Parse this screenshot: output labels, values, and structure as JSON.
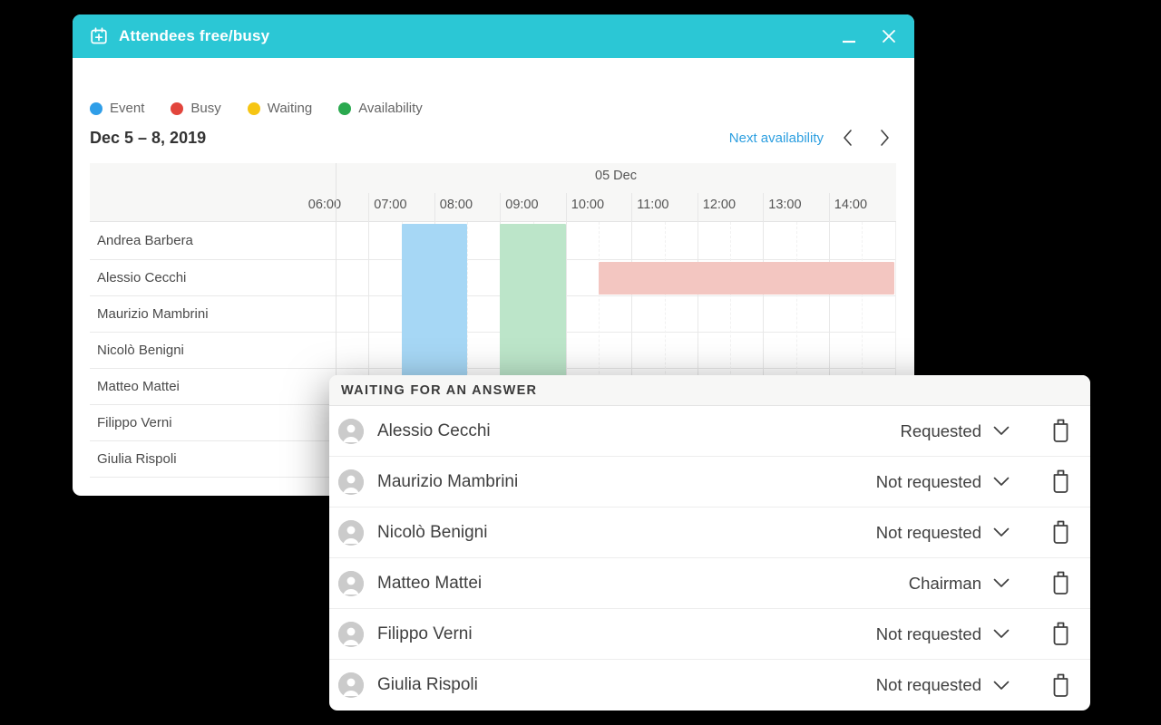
{
  "window": {
    "title": "Attendees free/busy",
    "titlebar_color": "#2bc7d5"
  },
  "legend": {
    "items": [
      {
        "label": "Event",
        "color": "#2f9ee8"
      },
      {
        "label": "Busy",
        "color": "#e2453c"
      },
      {
        "label": "Waiting",
        "color": "#f6c513"
      },
      {
        "label": "Availability",
        "color": "#2aa94f"
      }
    ]
  },
  "date_nav": {
    "range": "Dec 5 – 8, 2019",
    "next_link": "Next availability"
  },
  "scheduler": {
    "day_label": "05 Dec",
    "hours": [
      "06:00",
      "07:00",
      "08:00",
      "09:00",
      "10:00",
      "11:00",
      "12:00",
      "13:00",
      "14:00"
    ],
    "visible_start": "06:30",
    "visible_end": "15:00",
    "attendees": [
      "Andrea Barbera",
      "Alessio Cecchi",
      "Maurizio Mambrini",
      "Nicolò Benigni",
      "Matteo Mattei",
      "Filippo Verni",
      "Giulia Rispoli"
    ],
    "blocks": [
      {
        "type": "event",
        "start": "07:30",
        "end": "08:30",
        "row": "all",
        "color": "#a6d7f5"
      },
      {
        "type": "availability",
        "start": "09:00",
        "end": "10:00",
        "row": "all",
        "color": "#bce5c9"
      },
      {
        "type": "busy",
        "start": "10:30",
        "end": "15:00",
        "row": 1,
        "color": "#f3c6c1"
      }
    ]
  },
  "waiting_panel": {
    "title": "WAITING FOR AN ANSWER",
    "rows": [
      {
        "name": "Alessio Cecchi",
        "status": "Requested"
      },
      {
        "name": "Maurizio Mambrini",
        "status": "Not requested"
      },
      {
        "name": "Nicolò Benigni",
        "status": "Not requested"
      },
      {
        "name": "Matteo Mattei",
        "status": "Chairman"
      },
      {
        "name": "Filippo Verni",
        "status": "Not requested"
      },
      {
        "name": "Giulia Rispoli",
        "status": "Not requested"
      }
    ]
  }
}
